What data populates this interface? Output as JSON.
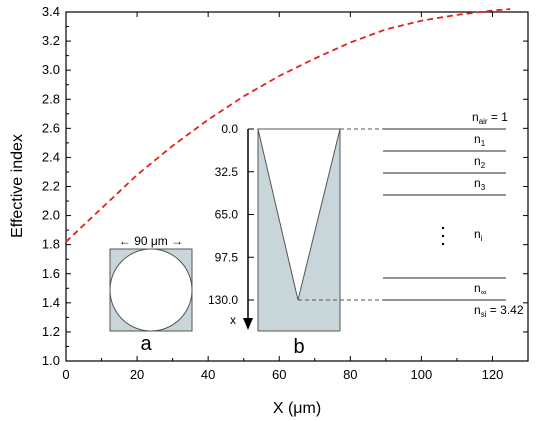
{
  "chart_data": {
    "type": "line",
    "title": "",
    "xlabel": "X (μm)",
    "ylabel": "Effective index",
    "xlim": [
      0,
      130
    ],
    "ylim": [
      1.0,
      3.4
    ],
    "xticks": [
      0,
      20,
      40,
      60,
      80,
      100,
      120
    ],
    "yticks": [
      1.0,
      1.2,
      1.4,
      1.6,
      1.8,
      2.0,
      2.2,
      2.4,
      2.6,
      2.8,
      3.0,
      3.2,
      3.4
    ],
    "series": [
      {
        "style": "dashed",
        "color": "#e0241c",
        "x": [
          0,
          10,
          20,
          30,
          40,
          50,
          60,
          70,
          80,
          90,
          100,
          110,
          120,
          125
        ],
        "y": [
          1.82,
          2.05,
          2.28,
          2.48,
          2.66,
          2.82,
          2.96,
          3.08,
          3.19,
          3.28,
          3.34,
          3.38,
          3.41,
          3.42
        ]
      }
    ],
    "grid": false
  },
  "inset_a": {
    "dimension_label": "← 90 μm →",
    "panel_label": "a"
  },
  "inset_b": {
    "axis_label": "x",
    "ticks": [
      "0.0",
      "32.5",
      "65.0",
      "97.5",
      "130.0"
    ],
    "panel_label": "b"
  },
  "layers": {
    "air": {
      "base": "n",
      "sub": "air",
      "suffix": " = 1"
    },
    "n1": {
      "base": "n",
      "sub": "1",
      "suffix": ""
    },
    "n2": {
      "base": "n",
      "sub": "2",
      "suffix": ""
    },
    "n3": {
      "base": "n",
      "sub": "3",
      "suffix": ""
    },
    "ni": {
      "base": "n",
      "sub": "i",
      "suffix": ""
    },
    "ninf": {
      "base": "n",
      "sub": "∞",
      "suffix": ""
    },
    "si": {
      "base": "n",
      "sub": "si",
      "suffix": " = 3.42"
    }
  },
  "colors": {
    "curve": "#e0241c",
    "fill": "#c9d6d9",
    "axis": "#000000"
  }
}
